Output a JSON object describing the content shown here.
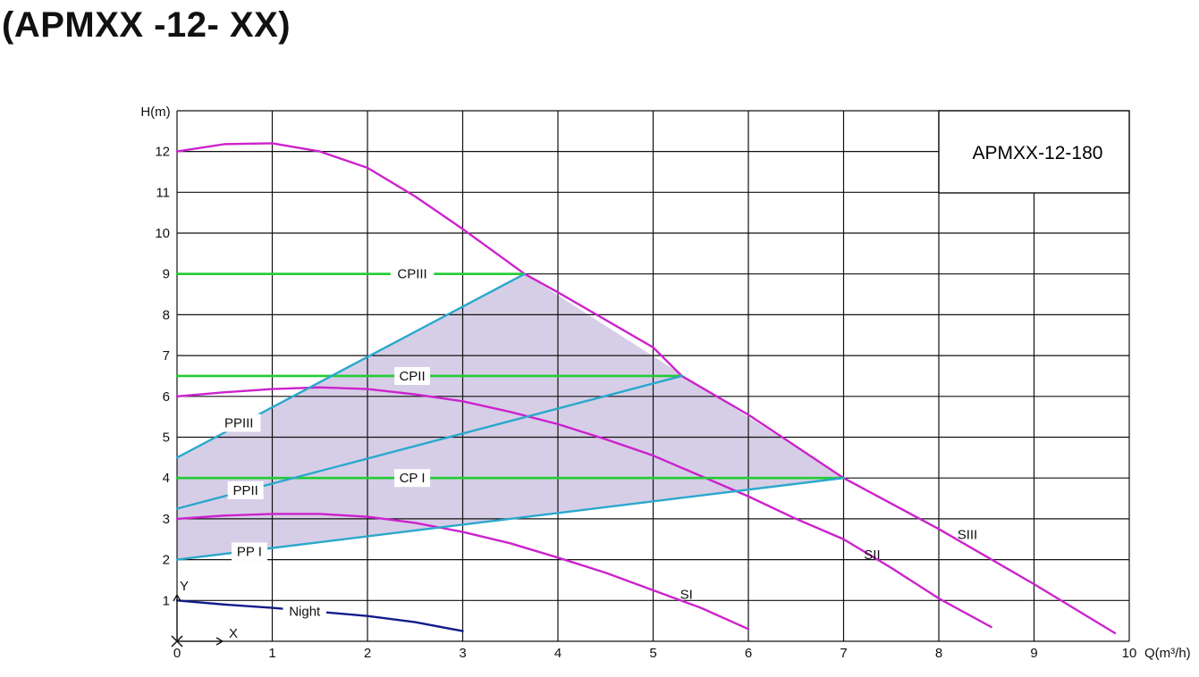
{
  "title": "(APMXX -12- XX)",
  "chart_data": {
    "type": "line",
    "model_label": "APMXX-12-180",
    "xlabel": "Q(m³/h)",
    "ylabel": "H(m)",
    "xlim": [
      0,
      10
    ],
    "ylim": [
      0,
      13
    ],
    "x_ticks": [
      "0",
      "1",
      "2",
      "3",
      "4",
      "5",
      "6",
      "7",
      "8",
      "9",
      "10"
    ],
    "y_ticks": [
      "1",
      "2",
      "3",
      "4",
      "5",
      "6",
      "7",
      "8",
      "9",
      "10",
      "11",
      "12"
    ],
    "grid": true,
    "origin_axes": {
      "x_label": "X",
      "y_label": "Y"
    },
    "colors": {
      "speed": "#cc22cc",
      "constant_pressure": "#22cc33",
      "proportional": "#2aa8cc",
      "night": "#101c8a",
      "region_fill": "#cfc6e3"
    },
    "operating_region": {
      "x": [
        0,
        3.65,
        7,
        0
      ],
      "y": [
        4.5,
        9,
        4,
        2
      ]
    },
    "series": [
      {
        "name": "SIII",
        "color": "#cc22cc",
        "x": [
          0,
          0.5,
          1,
          1.5,
          2,
          2.5,
          3,
          3.65,
          4,
          5,
          5.3,
          6,
          7,
          8,
          9,
          9.85
        ],
        "y": [
          12,
          12.18,
          12.2,
          12.0,
          11.6,
          10.9,
          10.1,
          9.0,
          8.55,
          7.2,
          6.5,
          5.55,
          4.0,
          2.75,
          1.4,
          0.2
        ]
      },
      {
        "name": "SII",
        "color": "#cc22cc",
        "x": [
          0,
          0.5,
          1,
          1.5,
          2,
          2.5,
          3,
          3.5,
          4,
          4.5,
          5,
          5.5,
          6,
          6.5,
          7,
          7.5,
          8,
          8.55
        ],
        "y": [
          6,
          6.1,
          6.18,
          6.22,
          6.18,
          6.05,
          5.88,
          5.62,
          5.32,
          4.95,
          4.55,
          4.05,
          3.55,
          3.0,
          2.5,
          1.8,
          1.05,
          0.35
        ]
      },
      {
        "name": "SI",
        "color": "#cc22cc",
        "x": [
          0,
          0.5,
          1,
          1.5,
          2,
          2.5,
          3,
          3.5,
          4,
          4.5,
          5,
          5.5,
          6
        ],
        "y": [
          3,
          3.08,
          3.12,
          3.12,
          3.05,
          2.9,
          2.68,
          2.4,
          2.05,
          1.68,
          1.25,
          0.82,
          0.3
        ]
      },
      {
        "name": "Night",
        "color": "#101c8a",
        "x": [
          0,
          0.5,
          1,
          1.5,
          2,
          2.5,
          3
        ],
        "y": [
          1.0,
          0.9,
          0.82,
          0.72,
          0.62,
          0.47,
          0.25
        ]
      },
      {
        "name": "CPIII",
        "color": "#22cc33",
        "x": [
          0,
          3.65
        ],
        "y": [
          9,
          9
        ]
      },
      {
        "name": "CPII",
        "color": "#22cc33",
        "x": [
          0,
          5.3
        ],
        "y": [
          6.5,
          6.5
        ]
      },
      {
        "name": "CP I",
        "color": "#22cc33",
        "x": [
          0,
          7
        ],
        "y": [
          4,
          4
        ]
      },
      {
        "name": "PPIII",
        "color": "#2aa8cc",
        "x": [
          0,
          3.65
        ],
        "y": [
          4.5,
          9
        ]
      },
      {
        "name": "PPII",
        "color": "#2aa8cc",
        "x": [
          0,
          5.3
        ],
        "y": [
          3.25,
          6.5
        ]
      },
      {
        "name": "PP I",
        "color": "#2aa8cc",
        "x": [
          0,
          7
        ],
        "y": [
          2,
          4
        ]
      }
    ],
    "annotations": [
      {
        "text": "CPIII",
        "x": 2.47,
        "y": 9
      },
      {
        "text": "CPII",
        "x": 2.47,
        "y": 6.5
      },
      {
        "text": "CP I",
        "x": 2.47,
        "y": 4
      },
      {
        "text": "PPIII",
        "x": 0.65,
        "y": 5.35
      },
      {
        "text": "PPII",
        "x": 0.72,
        "y": 3.7
      },
      {
        "text": "PP I",
        "x": 0.76,
        "y": 2.2
      },
      {
        "text": "Night",
        "x": 1.34,
        "y": 0.73
      },
      {
        "text": "SI",
        "x": 5.35,
        "y": 1.15
      },
      {
        "text": "SII",
        "x": 7.3,
        "y": 2.12
      },
      {
        "text": "SIII",
        "x": 8.3,
        "y": 2.62
      }
    ]
  }
}
